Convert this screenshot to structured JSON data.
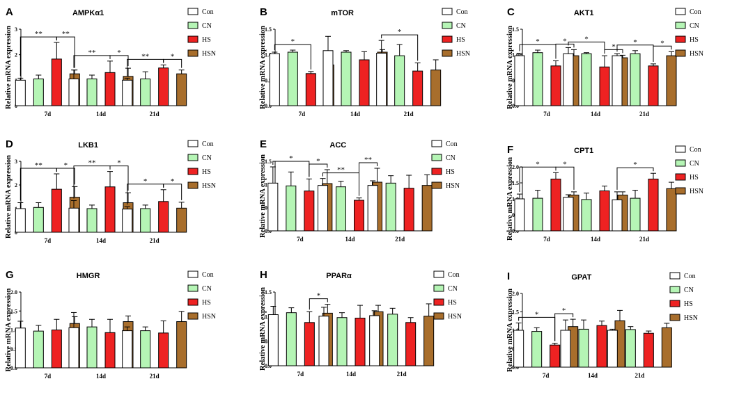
{
  "series_colors": [
    "#ffffff",
    "#b5f5b5",
    "#ee2222",
    "#a86e2c"
  ],
  "chart_data": [
    {
      "type": "bar",
      "letter": "A",
      "title": "AMPKα1",
      "ylabel": "Relative mRNA expression",
      "ylim": [
        0,
        3
      ],
      "yticks": [
        "0",
        "1",
        "2",
        "3"
      ],
      "categories": [
        "7d",
        "14d",
        "21d"
      ],
      "series": [
        {
          "name": "Con",
          "values": [
            1.0,
            1.05,
            1.0
          ],
          "errors": [
            0.08,
            0.35,
            0.08
          ]
        },
        {
          "name": "CN",
          "values": [
            1.05,
            1.05,
            1.05
          ],
          "errors": [
            0.15,
            0.15,
            0.28
          ]
        },
        {
          "name": "HS",
          "values": [
            1.83,
            1.3,
            1.48
          ],
          "errors": [
            0.65,
            0.45,
            0.12
          ]
        },
        {
          "name": "HSN",
          "values": [
            1.25,
            1.15,
            1.25
          ],
          "errors": [
            0.15,
            0.32,
            0.15
          ]
        }
      ],
      "annotations": [
        {
          "group": 0,
          "from": 0,
          "to": 2,
          "label": "**"
        },
        {
          "group": 0,
          "from": 2,
          "to": 3,
          "label": "**"
        },
        {
          "group": 1,
          "from": 0,
          "to": 2,
          "label": "**"
        },
        {
          "group": 1,
          "from": 2,
          "to": 3,
          "label": "*"
        },
        {
          "group": 2,
          "from": 0,
          "to": 2,
          "label": "**"
        },
        {
          "group": 2,
          "from": 2,
          "to": 3,
          "label": "*"
        }
      ]
    },
    {
      "type": "bar",
      "letter": "B",
      "title": "mTOR",
      "ylabel": "Relative mRNA expression",
      "ylim": [
        0,
        1.5
      ],
      "yticks": [
        "0.0",
        "0.5",
        "1.0",
        "1.5"
      ],
      "categories": [
        "7d",
        "14d",
        "21d"
      ],
      "series": [
        {
          "name": "Con",
          "values": [
            1.02,
            1.08,
            1.03
          ],
          "errors": [
            0.03,
            0.28,
            0.25
          ]
        },
        {
          "name": "CN",
          "values": [
            1.05,
            1.05,
            0.98
          ],
          "errors": [
            0.04,
            0.03,
            0.22
          ]
        },
        {
          "name": "HS",
          "values": [
            0.63,
            0.9,
            0.68
          ],
          "errors": [
            0.04,
            0.16,
            0.16
          ]
        },
        {
          "name": "HSN",
          "values": [
            0.8,
            1.05,
            0.7
          ],
          "errors": [
            0.2,
            0.05,
            0.2
          ]
        }
      ],
      "annotations": [
        {
          "group": 0,
          "from": 0,
          "to": 2,
          "label": "*"
        },
        {
          "group": 2,
          "from": 0,
          "to": 2,
          "label": "*"
        }
      ]
    },
    {
      "type": "bar",
      "letter": "C",
      "title": "AKT1",
      "ylabel": "Relative mRNA expression",
      "ylim": [
        0,
        1.5
      ],
      "yticks": [
        "0.0",
        "0.5",
        "1.0",
        "1.5"
      ],
      "categories": [
        "7d",
        "14d",
        "21d"
      ],
      "series": [
        {
          "name": "Con",
          "values": [
            0.98,
            1.02,
            0.98
          ],
          "errors": [
            0.05,
            0.12,
            0.04
          ]
        },
        {
          "name": "CN",
          "values": [
            1.04,
            1.02,
            1.02
          ],
          "errors": [
            0.05,
            0.02,
            0.06
          ]
        },
        {
          "name": "HS",
          "values": [
            0.78,
            0.76,
            0.78
          ],
          "errors": [
            0.1,
            0.22,
            0.04
          ]
        },
        {
          "name": "HSN",
          "values": [
            0.98,
            0.94,
            0.98
          ],
          "errors": [
            0.12,
            0.05,
            0.08
          ]
        }
      ],
      "annotations": [
        {
          "group": 0,
          "from": 0,
          "to": 2,
          "label": "*"
        },
        {
          "group": 0,
          "from": 2,
          "to": 3,
          "label": "*"
        },
        {
          "group": 1,
          "from": 0,
          "to": 2,
          "label": "*"
        },
        {
          "group": 1,
          "from": 2,
          "to": 3,
          "label": "*"
        },
        {
          "group": 2,
          "from": 0,
          "to": 2,
          "label": "*"
        },
        {
          "group": 2,
          "from": 2,
          "to": 3,
          "label": "*"
        }
      ]
    },
    {
      "type": "bar",
      "letter": "D",
      "title": "LKB1",
      "ylabel": "Relative mRNA expression",
      "ylim": [
        0,
        3
      ],
      "yticks": [
        "0",
        "1",
        "2",
        "3"
      ],
      "categories": [
        "7d",
        "14d",
        "21d"
      ],
      "series": [
        {
          "name": "Con",
          "values": [
            1.0,
            1.02,
            0.98
          ],
          "errors": [
            0.25,
            0.32,
            0.1
          ]
        },
        {
          "name": "CN",
          "values": [
            1.05,
            1.0,
            1.0
          ],
          "errors": [
            0.2,
            0.15,
            0.15
          ]
        },
        {
          "name": "HS",
          "values": [
            1.82,
            1.92,
            1.3
          ],
          "errors": [
            0.65,
            0.65,
            0.5
          ]
        },
        {
          "name": "HSN",
          "values": [
            1.48,
            1.25,
            1.02
          ],
          "errors": [
            0.45,
            0.42,
            0.25
          ]
        }
      ],
      "annotations": [
        {
          "group": 0,
          "from": 0,
          "to": 2,
          "label": "**"
        },
        {
          "group": 0,
          "from": 2,
          "to": 3,
          "label": "*"
        },
        {
          "group": 1,
          "from": 0,
          "to": 2,
          "label": "**"
        },
        {
          "group": 1,
          "from": 2,
          "to": 3,
          "label": "*"
        },
        {
          "group": 2,
          "from": 0,
          "to": 2,
          "label": "*"
        },
        {
          "group": 2,
          "from": 2,
          "to": 3,
          "label": "*"
        }
      ]
    },
    {
      "type": "bar",
      "letter": "E",
      "title": "ACC",
      "ylabel": "Relative mRNA expression",
      "ylim": [
        0,
        1.5
      ],
      "yticks": [
        "0.0",
        "0.5",
        "1.0",
        "1.5"
      ],
      "categories": [
        "7d",
        "14d",
        "21d"
      ],
      "series": [
        {
          "name": "Con",
          "values": [
            1.03,
            0.98,
            0.98
          ],
          "errors": [
            0.35,
            0.15,
            0.1
          ]
        },
        {
          "name": "CN",
          "values": [
            0.97,
            0.95,
            1.03
          ],
          "errors": [
            0.3,
            0.12,
            0.16
          ]
        },
        {
          "name": "HS",
          "values": [
            0.86,
            0.66,
            0.92
          ],
          "errors": [
            0.26,
            0.05,
            0.28
          ]
        },
        {
          "name": "HSN",
          "values": [
            1.02,
            1.05,
            0.98
          ],
          "errors": [
            0.3,
            0.3,
            0.23
          ]
        }
      ],
      "annotations": [
        {
          "group": 0,
          "from": 0,
          "to": 2,
          "label": "*"
        },
        {
          "group": 0,
          "from": 2,
          "to": 3,
          "label": "*"
        },
        {
          "group": 1,
          "from": 0,
          "to": 2,
          "label": "**"
        },
        {
          "group": 1,
          "from": 2,
          "to": 3,
          "label": "**"
        }
      ]
    },
    {
      "type": "bar",
      "letter": "F",
      "title": "CPT1",
      "ylabel": "Relative mRNA expression",
      "ylim": [
        0,
        2
      ],
      "yticks": [
        "0.0",
        "0.5",
        "1.0",
        "1.5",
        "2.0"
      ],
      "categories": [
        "7d",
        "14d",
        "21d"
      ],
      "series": [
        {
          "name": "Con",
          "values": [
            1.0,
            1.05,
            0.97
          ],
          "errors": [
            0.15,
            0.08,
            0.25
          ]
        },
        {
          "name": "CN",
          "values": [
            1.02,
            0.98,
            1.02
          ],
          "errors": [
            0.25,
            0.2,
            0.25
          ]
        },
        {
          "name": "HS",
          "values": [
            1.62,
            1.25,
            1.62
          ],
          "errors": [
            0.2,
            0.15,
            0.18
          ]
        },
        {
          "name": "HSN",
          "values": [
            1.12,
            1.12,
            1.32
          ],
          "errors": [
            0.1,
            0.1,
            0.2
          ]
        }
      ],
      "annotations": [
        {
          "group": 0,
          "from": 0,
          "to": 2,
          "label": "*"
        },
        {
          "group": 0,
          "from": 2,
          "to": 3,
          "label": "*"
        },
        {
          "group": 2,
          "from": 0,
          "to": 2,
          "label": "*"
        }
      ]
    },
    {
      "type": "bar",
      "letter": "G",
      "title": "HMGR",
      "ylabel": "Relative mRNA expression",
      "ylim": [
        0,
        2
      ],
      "yticks": [
        "0.0",
        "0.5",
        "1.0",
        "1.5",
        "2.0"
      ],
      "categories": [
        "7d",
        "14d",
        "21d"
      ],
      "series": [
        {
          "name": "Con",
          "values": [
            1.05,
            1.06,
            0.98
          ],
          "errors": [
            0.18,
            0.4,
            0.1
          ]
        },
        {
          "name": "CN",
          "values": [
            0.97,
            1.08,
            0.98
          ],
          "errors": [
            0.15,
            0.2,
            0.1
          ]
        },
        {
          "name": "HS",
          "values": [
            1.0,
            0.93,
            0.92
          ],
          "errors": [
            0.28,
            0.35,
            0.32
          ]
        },
        {
          "name": "HSN",
          "values": [
            1.17,
            1.22,
            1.22
          ],
          "errors": [
            0.18,
            0.15,
            0.27
          ]
        }
      ],
      "annotations": []
    },
    {
      "type": "bar",
      "letter": "H",
      "title": "PPARα",
      "ylabel": "Relative mRNA expression",
      "ylim": [
        0,
        1.5
      ],
      "yticks": [
        "0.0",
        "0.5",
        "1.0",
        "1.5"
      ],
      "categories": [
        "7d",
        "14d",
        "21d"
      ],
      "series": [
        {
          "name": "Con",
          "values": [
            1.04,
            1.01,
            1.02
          ],
          "errors": [
            0.17,
            0.18,
            0.1
          ]
        },
        {
          "name": "CN",
          "values": [
            1.08,
            0.98,
            1.05
          ],
          "errors": [
            0.1,
            0.1,
            0.12
          ]
        },
        {
          "name": "HS",
          "values": [
            0.88,
            0.97,
            0.88
          ],
          "errors": [
            0.22,
            0.26,
            0.1
          ]
        },
        {
          "name": "HSN",
          "values": [
            1.07,
            1.1,
            1.01
          ],
          "errors": [
            0.18,
            0.13,
            0.25
          ]
        }
      ],
      "annotations": [
        {
          "group": 0,
          "from": 2,
          "to": 3,
          "label": "*"
        }
      ]
    },
    {
      "type": "bar",
      "letter": "I",
      "title": "GPAT",
      "ylabel": "Relative mRNA expression",
      "ylim": [
        0,
        2
      ],
      "yticks": [
        "0.0",
        "0.5",
        "1.0",
        "1.5",
        "2.0"
      ],
      "categories": [
        "7d",
        "14d",
        "21d"
      ],
      "series": [
        {
          "name": "Con",
          "values": [
            1.0,
            1.0,
            1.0
          ],
          "errors": [
            0.2,
            0.28,
            0.03
          ]
        },
        {
          "name": "CN",
          "values": [
            0.97,
            1.03,
            1.02
          ],
          "errors": [
            0.1,
            0.25,
            0.08
          ]
        },
        {
          "name": "HS",
          "values": [
            0.6,
            1.13,
            0.92
          ],
          "errors": [
            0.05,
            0.12,
            0.06
          ]
        },
        {
          "name": "HSN",
          "values": [
            1.1,
            1.26,
            1.07
          ],
          "errors": [
            0.2,
            0.28,
            0.12
          ]
        }
      ],
      "annotations": [
        {
          "group": 0,
          "from": 0,
          "to": 2,
          "label": "*"
        },
        {
          "group": 0,
          "from": 2,
          "to": 3,
          "label": "*"
        }
      ]
    }
  ]
}
